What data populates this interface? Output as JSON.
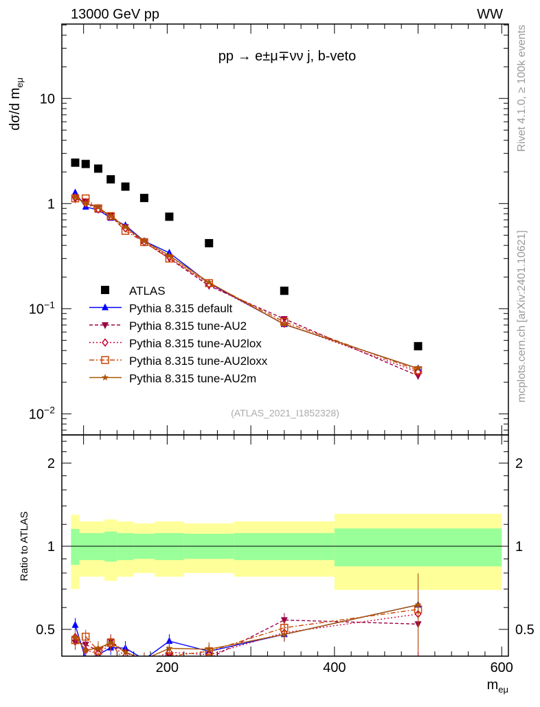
{
  "header": {
    "left": "13000 GeV pp",
    "right": "WW"
  },
  "side_text": {
    "rivet": "Rivet 4.1.0, ≥ 100k events",
    "mcplots": "mcplots.cern.ch [arXiv:2401.10621]"
  },
  "chart_data": [
    {
      "type": "line",
      "title": "pp → e±μ∓νν j, b-veto",
      "ylabel": "dσ/d m",
      "ylabel_sub": "eμ",
      "annotation": "(ATLAS_2021_I1852328)",
      "yscale": "log",
      "xlim": [
        74,
        608
      ],
      "ylim": [
        0.0063,
        51
      ],
      "yticks": [
        {
          "v": 0.01,
          "base": "10",
          "exp": "−2"
        },
        {
          "v": 0.1,
          "base": "10",
          "exp": "−1"
        },
        {
          "v": 1,
          "base": "1",
          "exp": ""
        },
        {
          "v": 10,
          "base": "10",
          "exp": ""
        }
      ],
      "legend_position": "center-left",
      "x": [
        90,
        102.5,
        117.5,
        132.5,
        150,
        172.5,
        202.5,
        250,
        340,
        500
      ],
      "series": [
        {
          "name": "ATLAS",
          "color": "#000000",
          "marker": "square",
          "dash": "none",
          "values": [
            2.45,
            2.38,
            2.15,
            1.7,
            1.45,
            1.13,
            0.75,
            0.42,
            0.148,
            0.044
          ]
        },
        {
          "name": "Pythia 8.315 default",
          "color": "#0000ff",
          "marker": "triangle-up",
          "dash": "",
          "values": [
            1.27,
            0.93,
            0.87,
            0.73,
            0.62,
            0.44,
            0.34,
            0.175,
            0.071,
            0.027
          ]
        },
        {
          "name": "Pythia 8.315 tune-AU2",
          "color": "#990044",
          "marker": "triangle-down",
          "dash": "5,3",
          "values": [
            1.1,
            1.05,
            0.9,
            0.77,
            0.6,
            0.43,
            0.3,
            0.165,
            0.08,
            0.023
          ]
        },
        {
          "name": "Pythia 8.315 tune-AU2lox",
          "color": "#cc0033",
          "marker": "diamond-open",
          "dash": "2,3",
          "values": [
            1.15,
            1.0,
            0.88,
            0.75,
            0.58,
            0.43,
            0.31,
            0.17,
            0.072,
            0.025
          ]
        },
        {
          "name": "Pythia 8.315 tune-AU2loxx",
          "color": "#cc4400",
          "marker": "square-open",
          "dash": "7,3,2,3",
          "values": [
            1.12,
            1.12,
            0.9,
            0.76,
            0.55,
            0.43,
            0.3,
            0.175,
            0.075,
            0.026
          ]
        },
        {
          "name": "Pythia 8.315 tune-AU2m",
          "color": "#aa5500",
          "marker": "star",
          "dash": "",
          "values": [
            1.15,
            1.0,
            0.92,
            0.76,
            0.6,
            0.44,
            0.32,
            0.178,
            0.071,
            0.027
          ]
        }
      ]
    },
    {
      "type": "line",
      "ylabel": "Ratio to ATLAS",
      "xlabel": "m",
      "xlabel_sub": "eμ",
      "yscale": "log",
      "xlim": [
        74,
        608
      ],
      "ylim": [
        0.4,
        2.53
      ],
      "xticks": [
        200,
        400,
        600
      ],
      "yticks": [
        0.5,
        1,
        2
      ],
      "band_edges": [
        85,
        95,
        125,
        140,
        160,
        185,
        220,
        280,
        400,
        600
      ],
      "band_outer": [
        [
          0.7,
          1.3
        ],
        [
          0.776,
          1.23
        ],
        [
          0.75,
          1.25
        ],
        [
          0.776,
          1.23
        ],
        [
          0.8,
          1.21
        ],
        [
          0.776,
          1.23
        ],
        [
          0.8,
          1.21
        ],
        [
          0.776,
          1.23
        ],
        [
          0.695,
          1.31
        ]
      ],
      "band_inner": [
        [
          0.856,
          1.155
        ],
        [
          0.891,
          1.116
        ],
        [
          0.88,
          1.13
        ],
        [
          0.891,
          1.116
        ],
        [
          0.9,
          1.11
        ],
        [
          0.891,
          1.116
        ],
        [
          0.9,
          1.11
        ],
        [
          0.891,
          1.116
        ],
        [
          0.846,
          1.16
        ]
      ],
      "band_colors": {
        "outer": "#ffff99",
        "inner": "#99ff99"
      }
    }
  ]
}
